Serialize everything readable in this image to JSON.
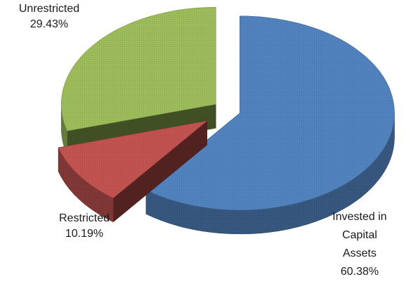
{
  "chart_data": {
    "type": "pie",
    "style": "3d-exploded",
    "title": "",
    "legend": "none",
    "slices": [
      {
        "label": "Invested in Capital Assets",
        "label_lines": [
          "Invested in",
          "Capital",
          "Assets"
        ],
        "value": 60.38,
        "value_label": "60.38%",
        "color": "#4f81bd"
      },
      {
        "label": "Restricted",
        "label_lines": [
          "Restricted"
        ],
        "value": 10.19,
        "value_label": "10.19%",
        "color": "#c0504d"
      },
      {
        "label": "Unrestricted",
        "label_lines": [
          "Unrestricted"
        ],
        "value": 29.43,
        "value_label": "29.43%",
        "color": "#9bbb59"
      }
    ]
  }
}
